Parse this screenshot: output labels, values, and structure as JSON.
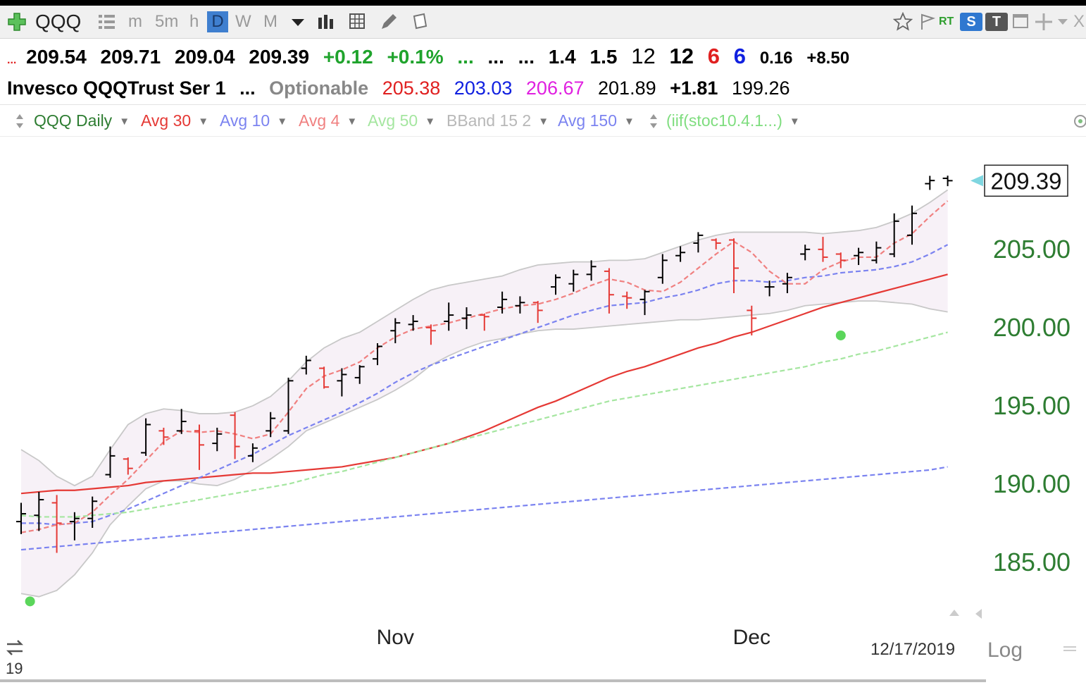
{
  "toolbar": {
    "symbol": "QQQ",
    "timeframes": [
      "m",
      "5m",
      "h",
      "D",
      "W",
      "M"
    ],
    "active_timeframe": "D",
    "rt_label": "RT",
    "s_label": "S",
    "t_label": "T",
    "close_label": "X"
  },
  "quote_line1": {
    "prefix": "...",
    "open": "209.54",
    "high": "209.71",
    "low": "209.04",
    "last": "209.39",
    "change": "+0.12",
    "change_pct": "+0.1%",
    "dots1": "...",
    "dots2": "...",
    "dots3": "...",
    "v1": "1.4",
    "v2": "1.5",
    "v3": "12",
    "v4": "12",
    "v5": "6",
    "v6": "6",
    "v7": "0.16",
    "v8": "+8.50"
  },
  "quote_line2": {
    "name": "Invesco QQQTrust Ser 1",
    "dots": "...",
    "optionable": "Optionable",
    "p1": "205.38",
    "p2": "203.03",
    "p3": "206.67",
    "p4": "201.89",
    "p5": "+1.81",
    "p6": "199.26"
  },
  "studies": [
    {
      "label": "QQQ Daily",
      "color": "#2e7d32"
    },
    {
      "label": "Avg 30",
      "color": "#e53935"
    },
    {
      "label": "Avg 10",
      "color": "#7b83f0"
    },
    {
      "label": "Avg 4",
      "color": "#f08080"
    },
    {
      "label": "Avg 50",
      "color": "#a5e6a0"
    },
    {
      "label": "BBand 15 2",
      "color": "#b8b8b8"
    },
    {
      "label": "Avg 150",
      "color": "#7b83f0"
    },
    {
      "label": "(iif(stoc10.4.1...)",
      "color": "#7fdd7f"
    }
  ],
  "footer": {
    "date": "12/17/2019",
    "scale": "Log",
    "corner_text": "19"
  },
  "chart_data": {
    "type": "ohlc-bar",
    "ylim": [
      182.2,
      212.2
    ],
    "log_scale": false,
    "yticks": [
      185,
      190,
      195,
      200,
      205
    ],
    "ytick_labels": [
      "185.00",
      "190.00",
      "195.00",
      "200.00",
      "205.00"
    ],
    "x_labels": [
      {
        "label": "Nov",
        "index": 21
      },
      {
        "label": "Dec",
        "index": 41
      }
    ],
    "last_price": "209.39",
    "colors": {
      "up": "#000000",
      "down": "#e53935",
      "price_axis": "#2e7d32"
    },
    "bars": [
      {
        "o": 187.6,
        "h": 188.8,
        "l": 186.8,
        "c": 188.1,
        "up": true
      },
      {
        "o": 188.0,
        "h": 189.5,
        "l": 187.0,
        "c": 189.0,
        "up": true
      },
      {
        "o": 188.8,
        "h": 189.3,
        "l": 185.6,
        "c": 187.5,
        "up": false
      },
      {
        "o": 187.6,
        "h": 188.2,
        "l": 186.4,
        "c": 187.8,
        "up": true
      },
      {
        "o": 187.8,
        "h": 189.2,
        "l": 187.2,
        "c": 188.9,
        "up": true
      },
      {
        "o": 190.6,
        "h": 192.4,
        "l": 190.4,
        "c": 191.8,
        "up": true
      },
      {
        "o": 191.6,
        "h": 191.7,
        "l": 190.6,
        "c": 191.0,
        "up": false
      },
      {
        "o": 192.0,
        "h": 194.2,
        "l": 191.8,
        "c": 193.8,
        "up": true
      },
      {
        "o": 193.4,
        "h": 193.6,
        "l": 192.5,
        "c": 193.0,
        "up": false
      },
      {
        "o": 193.4,
        "h": 194.8,
        "l": 193.2,
        "c": 194.0,
        "up": true
      },
      {
        "o": 193.4,
        "h": 193.8,
        "l": 190.9,
        "c": 192.5,
        "up": false
      },
      {
        "o": 192.6,
        "h": 193.6,
        "l": 192.1,
        "c": 193.2,
        "up": true
      },
      {
        "o": 194.4,
        "h": 194.6,
        "l": 191.6,
        "c": 192.4,
        "up": false
      },
      {
        "o": 191.8,
        "h": 192.6,
        "l": 191.4,
        "c": 192.3,
        "up": true
      },
      {
        "o": 193.4,
        "h": 194.6,
        "l": 193.0,
        "c": 194.2,
        "up": true
      },
      {
        "o": 193.4,
        "h": 196.8,
        "l": 193.2,
        "c": 196.6,
        "up": true
      },
      {
        "o": 197.4,
        "h": 198.2,
        "l": 197.0,
        "c": 197.9,
        "up": true
      },
      {
        "o": 197.4,
        "h": 197.5,
        "l": 196.1,
        "c": 196.2,
        "up": false
      },
      {
        "o": 196.6,
        "h": 197.4,
        "l": 195.6,
        "c": 197.0,
        "up": true
      },
      {
        "o": 196.8,
        "h": 197.6,
        "l": 196.4,
        "c": 197.5,
        "up": true
      },
      {
        "o": 198.0,
        "h": 199.0,
        "l": 197.6,
        "c": 198.8,
        "up": true
      },
      {
        "o": 199.8,
        "h": 200.6,
        "l": 199.0,
        "c": 200.3,
        "up": true
      },
      {
        "o": 200.2,
        "h": 200.8,
        "l": 199.8,
        "c": 200.4,
        "up": true
      },
      {
        "o": 200.0,
        "h": 200.2,
        "l": 198.9,
        "c": 199.8,
        "up": false
      },
      {
        "o": 200.4,
        "h": 201.6,
        "l": 199.8,
        "c": 200.8,
        "up": true
      },
      {
        "o": 200.6,
        "h": 201.3,
        "l": 199.9,
        "c": 200.8,
        "up": true
      },
      {
        "o": 200.8,
        "h": 200.9,
        "l": 199.8,
        "c": 200.7,
        "up": false
      },
      {
        "o": 201.3,
        "h": 202.3,
        "l": 200.9,
        "c": 201.8,
        "up": true
      },
      {
        "o": 201.4,
        "h": 202.0,
        "l": 200.9,
        "c": 201.6,
        "up": true
      },
      {
        "o": 201.6,
        "h": 201.7,
        "l": 200.3,
        "c": 201.1,
        "up": false
      },
      {
        "o": 202.6,
        "h": 203.4,
        "l": 202.1,
        "c": 203.2,
        "up": true
      },
      {
        "o": 202.8,
        "h": 203.7,
        "l": 202.3,
        "c": 203.4,
        "up": true
      },
      {
        "o": 203.4,
        "h": 204.3,
        "l": 203.0,
        "c": 203.9,
        "up": true
      },
      {
        "o": 203.6,
        "h": 203.8,
        "l": 200.9,
        "c": 202.1,
        "up": false
      },
      {
        "o": 202.0,
        "h": 202.3,
        "l": 201.2,
        "c": 201.9,
        "up": false
      },
      {
        "o": 201.8,
        "h": 202.4,
        "l": 200.8,
        "c": 202.3,
        "up": true
      },
      {
        "o": 203.2,
        "h": 204.7,
        "l": 202.8,
        "c": 204.3,
        "up": true
      },
      {
        "o": 204.6,
        "h": 205.2,
        "l": 204.2,
        "c": 204.8,
        "up": true
      },
      {
        "o": 205.4,
        "h": 206.1,
        "l": 204.8,
        "c": 205.9,
        "up": true
      },
      {
        "o": 205.6,
        "h": 205.7,
        "l": 205.0,
        "c": 205.4,
        "up": false
      },
      {
        "o": 205.6,
        "h": 205.7,
        "l": 202.2,
        "c": 203.8,
        "up": false
      },
      {
        "o": 201.1,
        "h": 201.4,
        "l": 199.5,
        "c": 200.6,
        "up": false
      },
      {
        "o": 202.6,
        "h": 203.0,
        "l": 202.0,
        "c": 202.6,
        "up": true
      },
      {
        "o": 202.8,
        "h": 203.5,
        "l": 202.2,
        "c": 203.2,
        "up": true
      },
      {
        "o": 204.7,
        "h": 205.3,
        "l": 204.3,
        "c": 205.0,
        "up": true
      },
      {
        "o": 205.0,
        "h": 205.8,
        "l": 204.2,
        "c": 204.5,
        "up": false
      },
      {
        "o": 204.7,
        "h": 204.8,
        "l": 203.8,
        "c": 204.3,
        "up": false
      },
      {
        "o": 204.6,
        "h": 205.1,
        "l": 204.0,
        "c": 204.8,
        "up": true
      },
      {
        "o": 204.3,
        "h": 205.5,
        "l": 204.1,
        "c": 205.1,
        "up": true
      },
      {
        "o": 204.7,
        "h": 207.3,
        "l": 204.5,
        "c": 206.8,
        "up": true
      },
      {
        "o": 205.9,
        "h": 207.8,
        "l": 205.3,
        "c": 207.3,
        "up": true
      },
      {
        "o": 209.2,
        "h": 209.7,
        "l": 208.8,
        "c": 209.4,
        "up": true
      },
      {
        "o": 209.54,
        "h": 209.71,
        "l": 209.04,
        "c": 209.39,
        "up": true
      }
    ],
    "series": [
      {
        "name": "Avg 30",
        "color": "#e53935",
        "style": "solid",
        "values": [
          189.4,
          189.5,
          189.6,
          189.6,
          189.7,
          189.8,
          189.9,
          190.1,
          190.2,
          190.3,
          190.4,
          190.5,
          190.6,
          190.7,
          190.7,
          190.8,
          190.9,
          191.0,
          191.1,
          191.3,
          191.5,
          191.7,
          192.0,
          192.3,
          192.6,
          193.0,
          193.4,
          193.9,
          194.4,
          194.9,
          195.3,
          195.8,
          196.3,
          196.8,
          197.2,
          197.5,
          197.9,
          198.3,
          198.7,
          199.0,
          199.4,
          199.7,
          200.1,
          200.5,
          200.9,
          201.3,
          201.6,
          201.9,
          202.2,
          202.5,
          202.8,
          203.1,
          203.4
        ]
      },
      {
        "name": "Avg 10",
        "color": "#7b83f0",
        "style": "dashed",
        "values": [
          187.5,
          187.5,
          187.4,
          187.5,
          187.6,
          188.0,
          188.4,
          188.9,
          189.4,
          189.9,
          190.4,
          190.9,
          191.4,
          191.9,
          192.5,
          193.1,
          193.6,
          194.1,
          194.6,
          195.2,
          195.8,
          196.5,
          197.1,
          197.6,
          198.0,
          198.4,
          198.8,
          199.2,
          199.6,
          200.0,
          200.4,
          200.8,
          201.1,
          201.4,
          201.5,
          201.6,
          201.9,
          202.1,
          202.4,
          202.8,
          203.0,
          203.0,
          202.9,
          203.0,
          203.2,
          203.3,
          203.5,
          203.6,
          203.7,
          203.9,
          204.2,
          204.7,
          205.3
        ]
      },
      {
        "name": "Avg 4",
        "color": "#f08080",
        "style": "dashed",
        "values": [
          186.9,
          187.1,
          187.4,
          187.5,
          188.2,
          189.3,
          190.3,
          191.5,
          192.7,
          193.4,
          193.3,
          193.4,
          193.2,
          192.9,
          193.2,
          194.6,
          196.1,
          196.9,
          197.3,
          197.8,
          198.7,
          199.4,
          199.9,
          200.1,
          200.3,
          200.6,
          200.9,
          201.2,
          201.4,
          201.5,
          201.8,
          202.2,
          202.7,
          203.1,
          202.9,
          202.4,
          202.3,
          202.9,
          203.8,
          204.7,
          205.5,
          204.8,
          203.6,
          202.8,
          202.8,
          203.7,
          204.2,
          204.5,
          204.5,
          205.4,
          206.0,
          207.1,
          208.1
        ]
      },
      {
        "name": "Avg 50",
        "color": "#a5e6a0",
        "style": "dashed",
        "values": [
          188.0,
          187.9,
          187.9,
          187.9,
          188.0,
          188.1,
          188.2,
          188.4,
          188.6,
          188.8,
          189.0,
          189.2,
          189.4,
          189.6,
          189.8,
          190.0,
          190.3,
          190.6,
          190.8,
          191.1,
          191.4,
          191.7,
          192.0,
          192.3,
          192.6,
          192.9,
          193.2,
          193.5,
          193.8,
          194.1,
          194.4,
          194.7,
          195.0,
          195.3,
          195.5,
          195.7,
          195.9,
          196.1,
          196.3,
          196.5,
          196.7,
          196.9,
          197.1,
          197.3,
          197.5,
          197.8,
          198.0,
          198.3,
          198.5,
          198.8,
          199.1,
          199.4,
          199.7
        ]
      },
      {
        "name": "Avg 150",
        "color": "#7b83f0",
        "style": "dashed",
        "values": [
          185.8,
          185.9,
          186.0,
          186.1,
          186.2,
          186.3,
          186.4,
          186.5,
          186.6,
          186.7,
          186.8,
          186.9,
          187.0,
          187.1,
          187.2,
          187.3,
          187.4,
          187.5,
          187.6,
          187.7,
          187.8,
          187.9,
          188.0,
          188.1,
          188.2,
          188.3,
          188.4,
          188.5,
          188.6,
          188.7,
          188.8,
          188.9,
          189.0,
          189.1,
          189.2,
          189.3,
          189.4,
          189.5,
          189.6,
          189.7,
          189.8,
          189.9,
          190.0,
          190.1,
          190.2,
          190.3,
          190.4,
          190.5,
          190.6,
          190.7,
          190.8,
          190.9,
          191.1
        ]
      },
      {
        "name": "BBand upper",
        "color": "#c8c8c8",
        "style": "solid",
        "values": [
          192.2,
          191.5,
          190.5,
          189.9,
          190.5,
          192.2,
          193.8,
          194.5,
          194.8,
          194.7,
          194.5,
          194.5,
          194.6,
          195.0,
          195.6,
          196.6,
          197.8,
          198.7,
          199.3,
          199.7,
          200.4,
          201.1,
          201.8,
          202.4,
          202.7,
          202.9,
          203.1,
          203.3,
          203.7,
          204.0,
          204.1,
          204.2,
          204.2,
          204.3,
          204.3,
          204.4,
          204.8,
          205.2,
          205.6,
          205.9,
          206.1,
          206.1,
          206.1,
          206.1,
          206.1,
          206.0,
          206.1,
          206.2,
          206.4,
          206.8,
          207.3,
          208.0,
          208.8
        ]
      },
      {
        "name": "BBand lower",
        "color": "#c8c8c8",
        "style": "solid",
        "values": [
          183.0,
          182.8,
          183.2,
          184.2,
          185.6,
          187.4,
          188.6,
          189.7,
          190.2,
          190.2,
          190.0,
          189.9,
          190.3,
          190.9,
          191.6,
          192.4,
          193.4,
          193.9,
          194.4,
          194.9,
          195.4,
          196.0,
          196.7,
          197.6,
          198.2,
          198.7,
          199.1,
          199.3,
          199.6,
          199.8,
          199.9,
          199.9,
          200.0,
          200.1,
          200.2,
          200.3,
          200.4,
          200.5,
          200.5,
          200.6,
          200.7,
          200.8,
          200.9,
          201.1,
          201.4,
          201.5,
          201.6,
          201.7,
          201.7,
          201.6,
          201.5,
          201.2,
          201.0
        ]
      }
    ],
    "signal_dots": [
      {
        "index": 46,
        "y": 199.5,
        "color": "#5bd65b"
      },
      {
        "index": 0.5,
        "y": 182.5,
        "color": "#5bd65b"
      }
    ]
  }
}
